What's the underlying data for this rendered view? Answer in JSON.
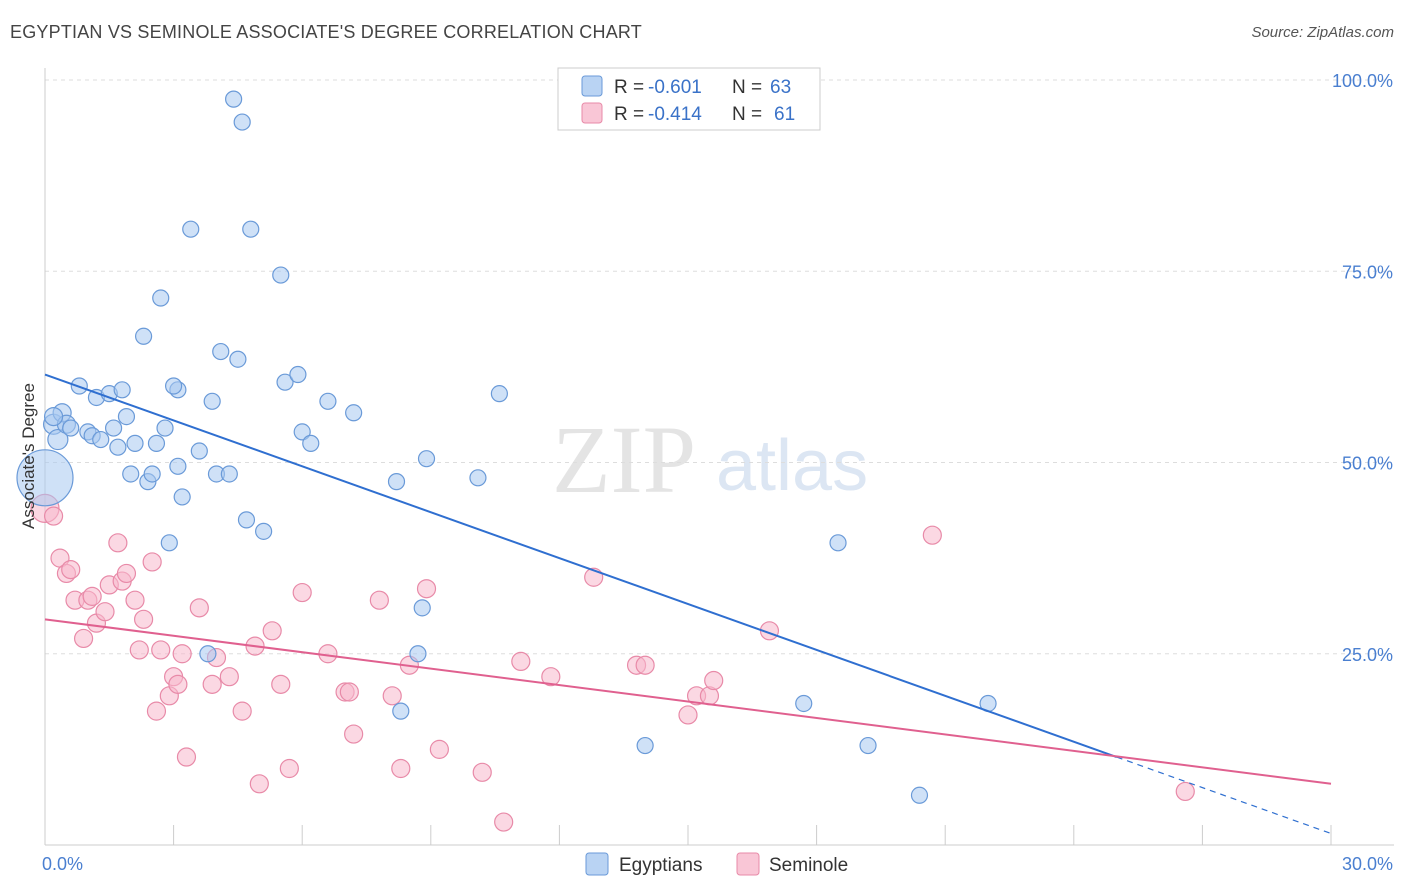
{
  "title": "EGYPTIAN VS SEMINOLE ASSOCIATE'S DEGREE CORRELATION CHART",
  "source": "Source: ZipAtlas.com",
  "watermark": {
    "zip": "ZIP",
    "atlas": "atlas"
  },
  "colors": {
    "egyptians_fill": "#a8c8f0",
    "egyptians_stroke": "#6a9ad8",
    "egyptians_line": "#2f6fd0",
    "seminole_fill": "#f7b8cc",
    "seminole_stroke": "#e88aa8",
    "seminole_line": "#e0608f",
    "tick_label": "#4a7fd0",
    "grid": "#dddddd"
  },
  "legend_top": {
    "row1": {
      "r_label": "R = ",
      "r_value": "-0.601",
      "n_label": "N = ",
      "n_value": "63"
    },
    "row2": {
      "r_label": "R = ",
      "r_value": "-0.414",
      "n_label": "N = ",
      "n_value": "61"
    }
  },
  "chart_data": {
    "type": "scatter",
    "title": "EGYPTIAN VS SEMINOLE ASSOCIATE'S DEGREE CORRELATION CHART",
    "xlabel": "",
    "ylabel": "Associate's Degree",
    "xlim": [
      0,
      30
    ],
    "ylim": [
      0,
      100
    ],
    "x_tick_labels": [
      "0.0%",
      "30.0%"
    ],
    "y_ticks": [
      25,
      50,
      75,
      100
    ],
    "y_tick_labels": [
      "25.0%",
      "50.0%",
      "75.0%",
      "100.0%"
    ],
    "grid": "horizontal dashed",
    "legend_placement": "top-center and bottom-center",
    "series": [
      {
        "name": "Egyptians",
        "r": -0.601,
        "n": 63,
        "trend": {
          "x0": 0,
          "y0": 61.5,
          "x1": 25,
          "y1": 11.5,
          "dashed_to_x": 30,
          "dashed_to_y": 1.5
        },
        "points": [
          [
            0.0,
            48.0,
            28
          ],
          [
            0.2,
            55.0,
            10
          ],
          [
            0.3,
            53.0,
            10
          ],
          [
            0.4,
            56.5,
            9
          ],
          [
            0.5,
            55.0,
            9
          ],
          [
            0.6,
            54.5,
            8
          ],
          [
            0.8,
            60.0,
            8
          ],
          [
            1.0,
            54.0,
            8
          ],
          [
            1.1,
            53.5,
            8
          ],
          [
            1.2,
            58.5,
            8
          ],
          [
            1.3,
            53.0,
            8
          ],
          [
            1.5,
            59.0,
            8
          ],
          [
            1.7,
            52.0,
            8
          ],
          [
            1.8,
            59.5,
            8
          ],
          [
            1.9,
            56.0,
            8
          ],
          [
            2.0,
            48.5,
            8
          ],
          [
            2.1,
            52.5,
            8
          ],
          [
            2.3,
            66.5,
            8
          ],
          [
            2.4,
            47.5,
            8
          ],
          [
            2.5,
            48.5,
            8
          ],
          [
            2.6,
            52.5,
            8
          ],
          [
            2.7,
            71.5,
            8
          ],
          [
            2.8,
            54.5,
            8
          ],
          [
            2.9,
            39.5,
            8
          ],
          [
            3.1,
            59.5,
            8
          ],
          [
            3.1,
            49.5,
            8
          ],
          [
            3.2,
            45.5,
            8
          ],
          [
            3.4,
            80.5,
            8
          ],
          [
            3.6,
            51.5,
            8
          ],
          [
            3.8,
            25.0,
            8
          ],
          [
            3.9,
            58.0,
            8
          ],
          [
            4.0,
            48.5,
            8
          ],
          [
            4.1,
            64.5,
            8
          ],
          [
            4.3,
            48.5,
            8
          ],
          [
            4.4,
            97.5,
            8
          ],
          [
            4.5,
            63.5,
            8
          ],
          [
            4.6,
            94.5,
            8
          ],
          [
            4.7,
            42.5,
            8
          ],
          [
            4.8,
            80.5,
            8
          ],
          [
            5.1,
            41.0,
            8
          ],
          [
            5.5,
            74.5,
            8
          ],
          [
            5.6,
            60.5,
            8
          ],
          [
            5.9,
            61.5,
            8
          ],
          [
            6.0,
            54.0,
            8
          ],
          [
            6.2,
            52.5,
            8
          ],
          [
            6.6,
            58.0,
            8
          ],
          [
            7.2,
            56.5,
            8
          ],
          [
            8.2,
            47.5,
            8
          ],
          [
            8.3,
            17.5,
            8
          ],
          [
            8.7,
            25.0,
            8
          ],
          [
            8.8,
            31.0,
            8
          ],
          [
            8.9,
            50.5,
            8
          ],
          [
            10.1,
            48.0,
            8
          ],
          [
            10.6,
            59.0,
            8
          ],
          [
            14.0,
            13.0,
            8
          ],
          [
            17.7,
            18.5,
            8
          ],
          [
            18.5,
            39.5,
            8
          ],
          [
            19.2,
            13.0,
            8
          ],
          [
            20.4,
            6.5,
            8
          ],
          [
            22.0,
            18.5,
            8
          ],
          [
            0.2,
            56.0,
            9
          ],
          [
            1.6,
            54.5,
            8
          ],
          [
            3.0,
            60.0,
            8
          ]
        ]
      },
      {
        "name": "Seminole",
        "r": -0.414,
        "n": 61,
        "trend": {
          "x0": 0,
          "y0": 29.5,
          "x1": 30,
          "y1": 8.0
        },
        "points": [
          [
            0.0,
            44.0,
            14
          ],
          [
            0.2,
            43.0,
            9
          ],
          [
            0.35,
            37.5,
            9
          ],
          [
            0.5,
            35.5,
            9
          ],
          [
            0.6,
            36.0,
            9
          ],
          [
            0.7,
            32.0,
            9
          ],
          [
            0.9,
            27.0,
            9
          ],
          [
            1.0,
            32.0,
            9
          ],
          [
            1.1,
            32.5,
            9
          ],
          [
            1.2,
            29.0,
            9
          ],
          [
            1.4,
            30.5,
            9
          ],
          [
            1.5,
            34.0,
            9
          ],
          [
            1.7,
            39.5,
            9
          ],
          [
            1.8,
            34.5,
            9
          ],
          [
            1.9,
            35.5,
            9
          ],
          [
            2.1,
            32.0,
            9
          ],
          [
            2.2,
            25.5,
            9
          ],
          [
            2.3,
            29.5,
            9
          ],
          [
            2.5,
            37.0,
            9
          ],
          [
            2.6,
            17.5,
            9
          ],
          [
            2.7,
            25.5,
            9
          ],
          [
            2.9,
            19.5,
            9
          ],
          [
            3.0,
            22.0,
            9
          ],
          [
            3.1,
            21.0,
            9
          ],
          [
            3.2,
            25.0,
            9
          ],
          [
            3.3,
            11.5,
            9
          ],
          [
            3.6,
            31.0,
            9
          ],
          [
            3.9,
            21.0,
            9
          ],
          [
            4.0,
            24.5,
            9
          ],
          [
            4.3,
            22.0,
            9
          ],
          [
            4.6,
            17.5,
            9
          ],
          [
            4.9,
            26.0,
            9
          ],
          [
            5.0,
            8.0,
            9
          ],
          [
            5.3,
            28.0,
            9
          ],
          [
            5.5,
            21.0,
            9
          ],
          [
            5.7,
            10.0,
            9
          ],
          [
            6.0,
            33.0,
            9
          ],
          [
            6.6,
            25.0,
            9
          ],
          [
            7.0,
            20.0,
            9
          ],
          [
            7.1,
            20.0,
            9
          ],
          [
            7.2,
            14.5,
            9
          ],
          [
            7.8,
            32.0,
            9
          ],
          [
            8.1,
            19.5,
            9
          ],
          [
            8.3,
            10.0,
            9
          ],
          [
            8.5,
            23.5,
            9
          ],
          [
            8.9,
            33.5,
            9
          ],
          [
            9.2,
            12.5,
            9
          ],
          [
            10.2,
            9.5,
            9
          ],
          [
            10.7,
            3.0,
            9
          ],
          [
            11.1,
            24.0,
            9
          ],
          [
            11.8,
            22.0,
            9
          ],
          [
            12.8,
            35.0,
            9
          ],
          [
            13.8,
            23.5,
            9
          ],
          [
            14.0,
            23.5,
            9
          ],
          [
            15.0,
            17.0,
            9
          ],
          [
            15.2,
            19.5,
            9
          ],
          [
            15.5,
            19.5,
            9
          ],
          [
            15.6,
            21.5,
            9
          ],
          [
            16.9,
            28.0,
            9
          ],
          [
            20.7,
            40.5,
            9
          ],
          [
            26.6,
            7.0,
            9
          ]
        ]
      }
    ]
  },
  "bottom_legend": {
    "egyptians": "Egyptians",
    "seminole": "Seminole"
  }
}
